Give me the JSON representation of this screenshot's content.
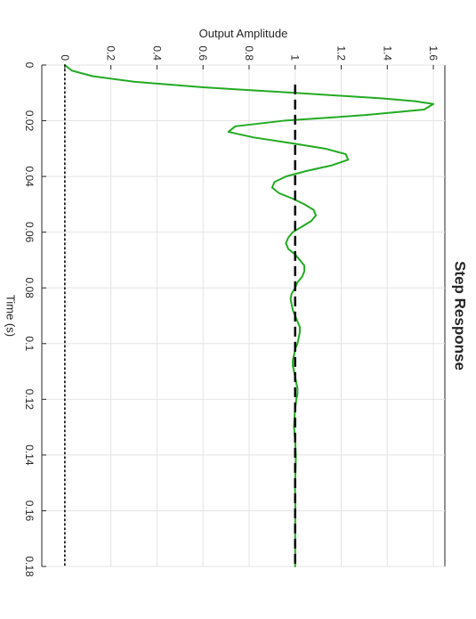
{
  "chart_data": {
    "type": "line",
    "orientation": "rotated 90 degrees clockwise",
    "title": "Step Response",
    "xlabel": "Time (s)",
    "ylabel": "Output Amplitude",
    "xlim": [
      0,
      0.18
    ],
    "ylim": [
      -0.1,
      1.65
    ],
    "x_ticks": [
      0,
      0.02,
      0.04,
      0.06,
      0.08,
      0.1,
      0.12,
      0.14,
      0.16,
      0.18
    ],
    "x_tick_labels": [
      "0",
      "0.02",
      "0.04",
      "0.06",
      "0.08",
      "0.1",
      "0.12",
      "0.14",
      "0.16",
      "0.18"
    ],
    "y_ticks": [
      0,
      0.2,
      0.4,
      0.6,
      0.8,
      1,
      1.2,
      1.4,
      1.6
    ],
    "y_tick_labels": [
      "0",
      "0.2",
      "0.4",
      "0.6",
      "0.8",
      "1",
      "1.2",
      "1.4",
      "1.6"
    ],
    "grid": true,
    "series": [
      {
        "style": "solid",
        "color": "#22aa22",
        "x": [
          0,
          0.002,
          0.004,
          0.006,
          0.008,
          0.01,
          0.012,
          0.013,
          0.014,
          0.016,
          0.018,
          0.02,
          0.022,
          0.024,
          0.026,
          0.028,
          0.03,
          0.032,
          0.034,
          0.036,
          0.038,
          0.04,
          0.042,
          0.044,
          0.046,
          0.048,
          0.05,
          0.052,
          0.054,
          0.056,
          0.058,
          0.06,
          0.062,
          0.064,
          0.066,
          0.068,
          0.07,
          0.072,
          0.074,
          0.076,
          0.078,
          0.08,
          0.082,
          0.084,
          0.086,
          0.088,
          0.09,
          0.092,
          0.094,
          0.096,
          0.098,
          0.1,
          0.102,
          0.104,
          0.106,
          0.108,
          0.11,
          0.112,
          0.114,
          0.116,
          0.118,
          0.12,
          0.125,
          0.13,
          0.135,
          0.14,
          0.145,
          0.15,
          0.155,
          0.16,
          0.165,
          0.17,
          0.175,
          0.18
        ],
        "y": [
          0,
          0.03,
          0.12,
          0.3,
          0.6,
          1.0,
          1.38,
          1.52,
          1.6,
          1.56,
          1.3,
          0.95,
          0.74,
          0.71,
          0.82,
          0.98,
          1.13,
          1.22,
          1.23,
          1.16,
          1.05,
          0.96,
          0.91,
          0.9,
          0.93,
          0.99,
          1.04,
          1.08,
          1.09,
          1.07,
          1.03,
          0.99,
          0.97,
          0.96,
          0.97,
          1.0,
          1.02,
          1.04,
          1.04,
          1.03,
          1.01,
          1.0,
          0.985,
          0.98,
          0.985,
          0.99,
          1.0,
          1.01,
          1.02,
          1.02,
          1.015,
          1.01,
          1.0,
          0.995,
          0.99,
          0.99,
          0.995,
          1.0,
          1.005,
          1.01,
          1.01,
          1.005,
          0.998,
          0.995,
          1.0,
          1.003,
          1.002,
          0.999,
          1.0,
          1.001,
          1.0,
          1.0,
          1.0,
          1.0
        ]
      },
      {
        "style": "dashed",
        "color": "#000000",
        "x": [
          0.007,
          0.18
        ],
        "y": [
          1,
          1
        ]
      },
      {
        "style": "dotted",
        "color": "#000000",
        "x": [
          0,
          0.18
        ],
        "y": [
          0,
          0
        ]
      }
    ]
  }
}
